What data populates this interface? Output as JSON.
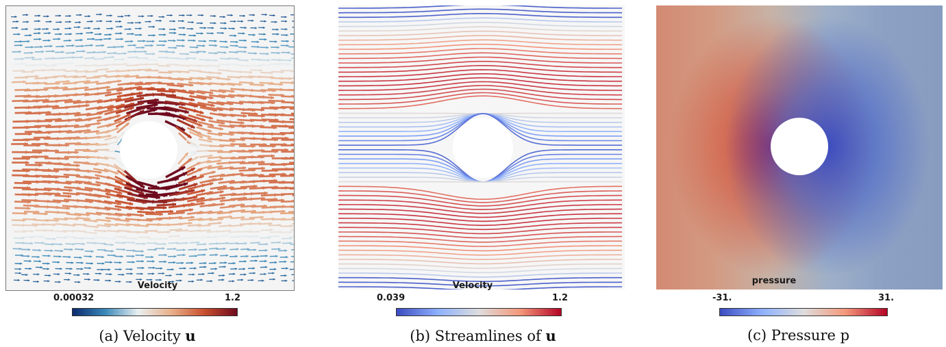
{
  "panels": [
    {
      "legend_title": "Velocity",
      "range_min": "0.00032",
      "range_max": "1.2",
      "colormap": [
        "#0b2a6e",
        "#3b89b8",
        "#e9eff1",
        "#e8b08a",
        "#c9502e",
        "#6e0a1e"
      ],
      "caption_prefix": "(a) Velocity",
      "caption_symbol": "u"
    },
    {
      "legend_title": "Velocity",
      "range_min": "0.039",
      "range_max": "1.2",
      "colormap": [
        "#3b4cc0",
        "#8db0fe",
        "#dddddd",
        "#f4987a",
        "#b40426"
      ],
      "caption_prefix": "(b) Streamlines of",
      "caption_symbol": "u"
    },
    {
      "legend_title": "pressure",
      "range_min": "-31.",
      "range_max": "31.",
      "colormap": [
        "#3b4cc0",
        "#8db0fe",
        "#dddddd",
        "#f4987a",
        "#b40426"
      ],
      "caption_prefix": "(c) Pressure p",
      "caption_symbol": ""
    }
  ]
}
